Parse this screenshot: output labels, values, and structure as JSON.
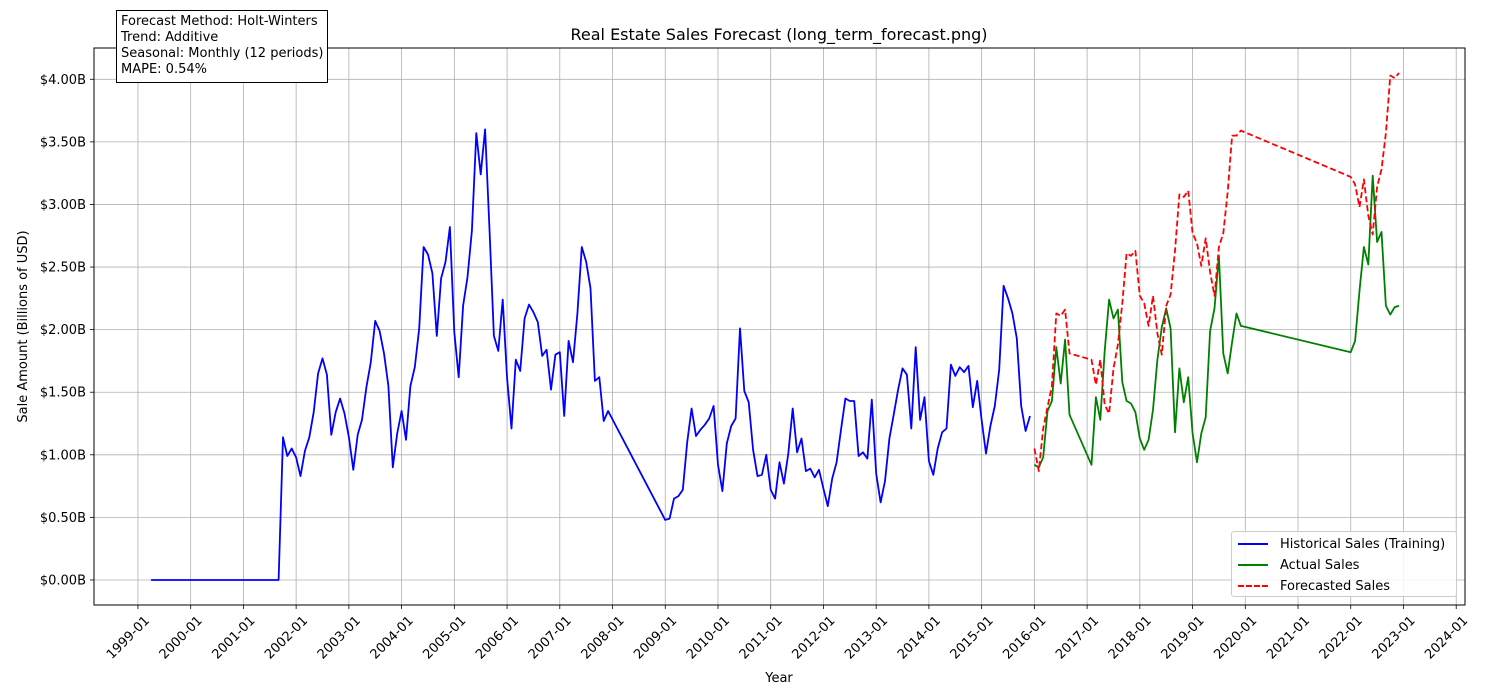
{
  "chart_data": {
    "type": "line",
    "title": "Real Estate Sales Forecast (long_term_forecast.png)",
    "xlabel": "Year",
    "ylabel": "Sale Amount (Billions of USD)",
    "x_tick_labels": [
      "1999-01",
      "2000-01",
      "2001-01",
      "2002-01",
      "2003-01",
      "2004-01",
      "2005-01",
      "2006-01",
      "2007-01",
      "2008-01",
      "2009-01",
      "2010-01",
      "2011-01",
      "2012-01",
      "2013-01",
      "2014-01",
      "2015-01",
      "2016-01",
      "2017-01",
      "2018-01",
      "2019-01",
      "2020-01",
      "2021-01",
      "2022-01",
      "2023-01",
      "2024-01"
    ],
    "y_tick_values": [
      0.0,
      0.5,
      1.0,
      1.5,
      2.0,
      2.5,
      3.0,
      3.5,
      4.0
    ],
    "y_tick_labels": [
      "$0.00B",
      "$0.50B",
      "$1.00B",
      "$1.50B",
      "$2.00B",
      "$2.50B",
      "$3.00B",
      "$3.50B",
      "$4.00B"
    ],
    "xlim": [
      "1998-03",
      "2024-03"
    ],
    "ylim": [
      -0.2,
      4.25
    ],
    "grid": true,
    "legend_position": "lower-right",
    "series": [
      {
        "name": "Historical Sales (Training)",
        "color": "#0000ff",
        "style": "solid",
        "points": [
          [
            "1999-04",
            0.0
          ],
          [
            "2001-09",
            0.0
          ],
          [
            "2001-10",
            1.14
          ],
          [
            "2001-11",
            0.99
          ],
          [
            "2001-12",
            1.05
          ],
          [
            "2002-01",
            0.98
          ],
          [
            "2002-02",
            0.83
          ],
          [
            "2002-03",
            1.03
          ],
          [
            "2002-04",
            1.14
          ],
          [
            "2002-05",
            1.34
          ],
          [
            "2002-06",
            1.65
          ],
          [
            "2002-07",
            1.77
          ],
          [
            "2002-08",
            1.64
          ],
          [
            "2002-09",
            1.16
          ],
          [
            "2002-10",
            1.34
          ],
          [
            "2002-11",
            1.45
          ],
          [
            "2002-12",
            1.33
          ],
          [
            "2003-01",
            1.14
          ],
          [
            "2003-02",
            0.88
          ],
          [
            "2003-03",
            1.16
          ],
          [
            "2003-04",
            1.28
          ],
          [
            "2003-05",
            1.54
          ],
          [
            "2003-06",
            1.74
          ],
          [
            "2003-07",
            2.07
          ],
          [
            "2003-08",
            1.99
          ],
          [
            "2003-09",
            1.81
          ],
          [
            "2003-10",
            1.55
          ],
          [
            "2003-11",
            0.9
          ],
          [
            "2003-12",
            1.17
          ],
          [
            "2004-01",
            1.35
          ],
          [
            "2004-02",
            1.12
          ],
          [
            "2004-03",
            1.55
          ],
          [
            "2004-04",
            1.7
          ],
          [
            "2004-05",
            2.01
          ],
          [
            "2004-06",
            2.66
          ],
          [
            "2004-07",
            2.6
          ],
          [
            "2004-08",
            2.45
          ],
          [
            "2004-09",
            1.95
          ],
          [
            "2004-10",
            2.41
          ],
          [
            "2004-11",
            2.54
          ],
          [
            "2004-12",
            2.82
          ],
          [
            "2005-01",
            1.98
          ],
          [
            "2005-02",
            1.62
          ],
          [
            "2005-03",
            2.19
          ],
          [
            "2005-04",
            2.42
          ],
          [
            "2005-05",
            2.79
          ],
          [
            "2005-06",
            3.57
          ],
          [
            "2005-07",
            3.24
          ],
          [
            "2005-08",
            3.6
          ],
          [
            "2005-09",
            2.8
          ],
          [
            "2005-10",
            1.95
          ],
          [
            "2005-11",
            1.83
          ],
          [
            "2005-12",
            2.24
          ],
          [
            "2006-01",
            1.61
          ],
          [
            "2006-02",
            1.21
          ],
          [
            "2006-03",
            1.76
          ],
          [
            "2006-04",
            1.67
          ],
          [
            "2006-05",
            2.09
          ],
          [
            "2006-06",
            2.2
          ],
          [
            "2006-07",
            2.14
          ],
          [
            "2006-08",
            2.06
          ],
          [
            "2006-09",
            1.79
          ],
          [
            "2006-10",
            1.84
          ],
          [
            "2006-11",
            1.52
          ],
          [
            "2006-12",
            1.8
          ],
          [
            "2007-01",
            1.82
          ],
          [
            "2007-02",
            1.31
          ],
          [
            "2007-03",
            1.91
          ],
          [
            "2007-04",
            1.74
          ],
          [
            "2007-05",
            2.13
          ],
          [
            "2007-06",
            2.66
          ],
          [
            "2007-07",
            2.54
          ],
          [
            "2007-08",
            2.33
          ],
          [
            "2007-09",
            1.59
          ],
          [
            "2007-10",
            1.62
          ],
          [
            "2007-11",
            1.27
          ],
          [
            "2007-12",
            1.35
          ],
          [
            "2009-01",
            0.48
          ],
          [
            "2009-02",
            0.49
          ],
          [
            "2009-03",
            0.65
          ],
          [
            "2009-04",
            0.67
          ],
          [
            "2009-05",
            0.72
          ],
          [
            "2009-06",
            1.1
          ],
          [
            "2009-07",
            1.37
          ],
          [
            "2009-08",
            1.15
          ],
          [
            "2009-09",
            1.2
          ],
          [
            "2009-10",
            1.24
          ],
          [
            "2009-11",
            1.29
          ],
          [
            "2009-12",
            1.39
          ],
          [
            "2010-01",
            0.92
          ],
          [
            "2010-02",
            0.71
          ],
          [
            "2010-03",
            1.09
          ],
          [
            "2010-04",
            1.23
          ],
          [
            "2010-05",
            1.29
          ],
          [
            "2010-06",
            2.01
          ],
          [
            "2010-07",
            1.51
          ],
          [
            "2010-08",
            1.42
          ],
          [
            "2010-09",
            1.04
          ],
          [
            "2010-10",
            0.83
          ],
          [
            "2010-11",
            0.84
          ],
          [
            "2010-12",
            1.0
          ],
          [
            "2011-01",
            0.72
          ],
          [
            "2011-02",
            0.65
          ],
          [
            "2011-03",
            0.94
          ],
          [
            "2011-04",
            0.77
          ],
          [
            "2011-05",
            1.01
          ],
          [
            "2011-06",
            1.37
          ],
          [
            "2011-07",
            1.02
          ],
          [
            "2011-08",
            1.13
          ],
          [
            "2011-09",
            0.87
          ],
          [
            "2011-10",
            0.89
          ],
          [
            "2011-11",
            0.82
          ],
          [
            "2011-12",
            0.88
          ],
          [
            "2012-01",
            0.73
          ],
          [
            "2012-02",
            0.59
          ],
          [
            "2012-03",
            0.81
          ],
          [
            "2012-04",
            0.94
          ],
          [
            "2012-05",
            1.2
          ],
          [
            "2012-06",
            1.45
          ],
          [
            "2012-07",
            1.43
          ],
          [
            "2012-08",
            1.43
          ],
          [
            "2012-09",
            0.99
          ],
          [
            "2012-10",
            1.02
          ],
          [
            "2012-11",
            0.97
          ],
          [
            "2012-12",
            1.44
          ],
          [
            "2013-01",
            0.85
          ],
          [
            "2013-02",
            0.62
          ],
          [
            "2013-03",
            0.79
          ],
          [
            "2013-04",
            1.13
          ],
          [
            "2013-05",
            1.32
          ],
          [
            "2013-06",
            1.52
          ],
          [
            "2013-07",
            1.69
          ],
          [
            "2013-08",
            1.64
          ],
          [
            "2013-09",
            1.21
          ],
          [
            "2013-10",
            1.86
          ],
          [
            "2013-11",
            1.28
          ],
          [
            "2013-12",
            1.46
          ],
          [
            "2014-01",
            0.95
          ],
          [
            "2014-02",
            0.84
          ],
          [
            "2014-03",
            1.05
          ],
          [
            "2014-04",
            1.18
          ],
          [
            "2014-05",
            1.21
          ],
          [
            "2014-06",
            1.72
          ],
          [
            "2014-07",
            1.63
          ],
          [
            "2014-08",
            1.7
          ],
          [
            "2014-09",
            1.66
          ],
          [
            "2014-10",
            1.71
          ],
          [
            "2014-11",
            1.38
          ],
          [
            "2014-12",
            1.59
          ],
          [
            "2015-01",
            1.28
          ],
          [
            "2015-02",
            1.01
          ],
          [
            "2015-03",
            1.23
          ],
          [
            "2015-04",
            1.39
          ],
          [
            "2015-05",
            1.68
          ],
          [
            "2015-06",
            2.35
          ],
          [
            "2015-07",
            2.25
          ],
          [
            "2015-08",
            2.13
          ],
          [
            "2015-09",
            1.93
          ],
          [
            "2015-10",
            1.39
          ],
          [
            "2015-11",
            1.19
          ],
          [
            "2015-12",
            1.31
          ]
        ]
      },
      {
        "name": "Actual Sales",
        "color": "#008000",
        "style": "solid",
        "points": [
          [
            "2016-01",
            0.92
          ],
          [
            "2016-02",
            0.9
          ],
          [
            "2016-03",
            0.98
          ],
          [
            "2016-04",
            1.35
          ],
          [
            "2016-05",
            1.43
          ],
          [
            "2016-06",
            1.86
          ],
          [
            "2016-07",
            1.57
          ],
          [
            "2016-08",
            1.92
          ],
          [
            "2016-09",
            1.32
          ],
          [
            "2017-02",
            0.92
          ],
          [
            "2017-03",
            1.46
          ],
          [
            "2017-04",
            1.28
          ],
          [
            "2017-05",
            1.83
          ],
          [
            "2017-06",
            2.24
          ],
          [
            "2017-07",
            2.09
          ],
          [
            "2017-08",
            2.16
          ],
          [
            "2017-09",
            1.58
          ],
          [
            "2017-10",
            1.43
          ],
          [
            "2017-11",
            1.41
          ],
          [
            "2017-12",
            1.34
          ],
          [
            "2018-01",
            1.13
          ],
          [
            "2018-02",
            1.04
          ],
          [
            "2018-03",
            1.12
          ],
          [
            "2018-04",
            1.36
          ],
          [
            "2018-05",
            1.76
          ],
          [
            "2018-06",
            2.02
          ],
          [
            "2018-07",
            2.17
          ],
          [
            "2018-08",
            2.01
          ],
          [
            "2018-09",
            1.18
          ],
          [
            "2018-10",
            1.69
          ],
          [
            "2018-11",
            1.42
          ],
          [
            "2018-12",
            1.62
          ],
          [
            "2019-01",
            1.17
          ],
          [
            "2019-02",
            0.94
          ],
          [
            "2019-03",
            1.17
          ],
          [
            "2019-04",
            1.3
          ],
          [
            "2019-05",
            1.99
          ],
          [
            "2019-06",
            2.17
          ],
          [
            "2019-07",
            2.59
          ],
          [
            "2019-08",
            1.81
          ],
          [
            "2019-09",
            1.65
          ],
          [
            "2019-10",
            1.9
          ],
          [
            "2019-11",
            2.13
          ],
          [
            "2019-12",
            2.03
          ],
          [
            "2022-01",
            1.82
          ],
          [
            "2022-02",
            1.91
          ],
          [
            "2022-03",
            2.31
          ],
          [
            "2022-04",
            2.66
          ],
          [
            "2022-05",
            2.52
          ],
          [
            "2022-06",
            3.23
          ],
          [
            "2022-07",
            2.7
          ],
          [
            "2022-08",
            2.78
          ],
          [
            "2022-09",
            2.19
          ],
          [
            "2022-10",
            2.12
          ],
          [
            "2022-11",
            2.18
          ],
          [
            "2022-12",
            2.19
          ]
        ]
      },
      {
        "name": "Forecasted Sales",
        "color": "#ff0000",
        "style": "dashed",
        "points": [
          [
            "2016-01",
            1.05
          ],
          [
            "2016-02",
            0.87
          ],
          [
            "2016-03",
            1.21
          ],
          [
            "2016-04",
            1.38
          ],
          [
            "2016-05",
            1.55
          ],
          [
            "2016-06",
            2.13
          ],
          [
            "2016-07",
            2.11
          ],
          [
            "2016-08",
            2.16
          ],
          [
            "2016-09",
            1.81
          ],
          [
            "2017-02",
            1.76
          ],
          [
            "2017-03",
            1.56
          ],
          [
            "2017-04",
            1.76
          ],
          [
            "2017-05",
            1.4
          ],
          [
            "2017-06",
            1.33
          ],
          [
            "2017-07",
            1.69
          ],
          [
            "2017-08",
            1.88
          ],
          [
            "2017-09",
            2.21
          ],
          [
            "2017-10",
            2.61
          ],
          [
            "2017-11",
            2.59
          ],
          [
            "2017-12",
            2.63
          ],
          [
            "2018-01",
            2.27
          ],
          [
            "2018-02",
            2.21
          ],
          [
            "2018-03",
            2.03
          ],
          [
            "2018-04",
            2.27
          ],
          [
            "2018-05",
            1.97
          ],
          [
            "2018-06",
            1.8
          ],
          [
            "2018-07",
            2.19
          ],
          [
            "2018-08",
            2.28
          ],
          [
            "2018-09",
            2.63
          ],
          [
            "2018-10",
            3.08
          ],
          [
            "2018-11",
            3.06
          ],
          [
            "2018-12",
            3.11
          ],
          [
            "2019-01",
            2.77
          ],
          [
            "2019-02",
            2.69
          ],
          [
            "2019-03",
            2.51
          ],
          [
            "2019-04",
            2.73
          ],
          [
            "2019-05",
            2.46
          ],
          [
            "2019-06",
            2.27
          ],
          [
            "2019-07",
            2.66
          ],
          [
            "2019-08",
            2.77
          ],
          [
            "2019-09",
            3.1
          ],
          [
            "2019-10",
            3.55
          ],
          [
            "2019-11",
            3.55
          ],
          [
            "2019-12",
            3.59
          ],
          [
            "2022-01",
            3.22
          ],
          [
            "2022-02",
            3.16
          ],
          [
            "2022-03",
            2.98
          ],
          [
            "2022-04",
            3.2
          ],
          [
            "2022-05",
            2.91
          ],
          [
            "2022-06",
            2.76
          ],
          [
            "2022-07",
            3.14
          ],
          [
            "2022-08",
            3.28
          ],
          [
            "2022-09",
            3.57
          ],
          [
            "2022-10",
            4.03
          ],
          [
            "2022-11",
            4.01
          ],
          [
            "2022-12",
            4.05
          ]
        ]
      }
    ]
  },
  "info_box": {
    "lines": [
      "Forecast Method: Holt-Winters",
      "Trend: Additive",
      "Seasonal: Monthly (12 periods)",
      "MAPE: 0.54%"
    ]
  }
}
